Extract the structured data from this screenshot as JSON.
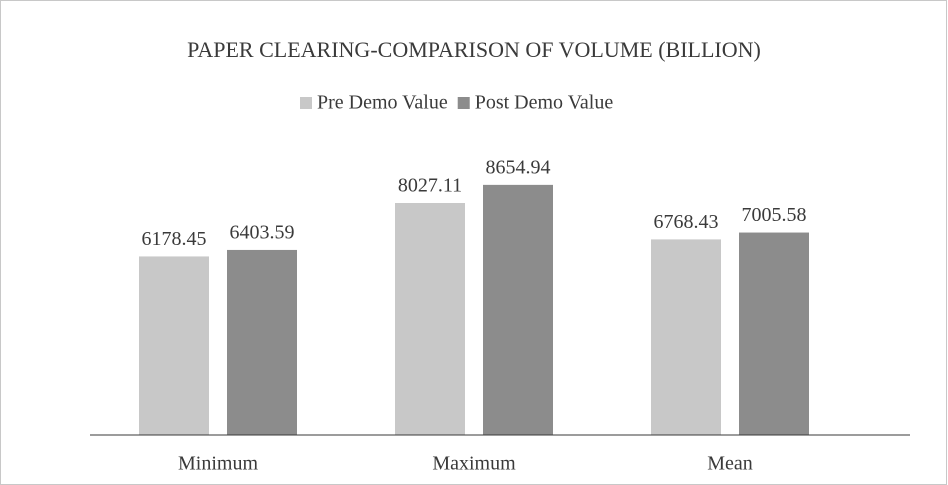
{
  "chart_data": {
    "type": "bar",
    "title": "PAPER CLEARING-COMPARISON OF VOLUME (BILLION)",
    "categories": [
      "Minimum",
      "Maximum",
      "Mean"
    ],
    "series": [
      {
        "name": "Pre Demo Value",
        "color": "#c8c8c8",
        "values": [
          6178.45,
          8027.11,
          6768.43
        ]
      },
      {
        "name": "Post Demo Value",
        "color": "#8c8c8c",
        "values": [
          6403.59,
          8654.94,
          7005.58
        ]
      }
    ],
    "ylim": [
      0,
      10000
    ],
    "legend": "top"
  }
}
